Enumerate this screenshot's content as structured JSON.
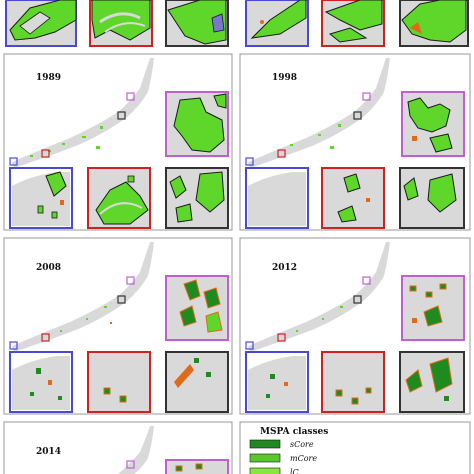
{
  "panels": [
    {
      "key": "top",
      "year": ""
    },
    {
      "key": "p1989",
      "year": "1989"
    },
    {
      "key": "p1998",
      "year": "1998"
    },
    {
      "key": "p2008",
      "year": "2008"
    },
    {
      "key": "p2012",
      "year": "2012"
    },
    {
      "key": "p2014",
      "year": "2014"
    }
  ],
  "legend": {
    "title": "MSPA classes",
    "items": [
      {
        "label": "sCore",
        "color": "#1f8a1f"
      },
      {
        "label": "mCore",
        "color": "#58c832"
      },
      {
        "label": "lC",
        "color": "#86e83a"
      }
    ]
  },
  "colors": {
    "land": "#d9d9d9",
    "core": "#5ed62a",
    "edge": "#e06a1a",
    "outline": "#1a1a1a",
    "box_blue": "#4a4ad0",
    "box_red": "#d02020",
    "box_purple": "#c060d0",
    "box_dark": "#333333",
    "panel_border": "#999999"
  }
}
